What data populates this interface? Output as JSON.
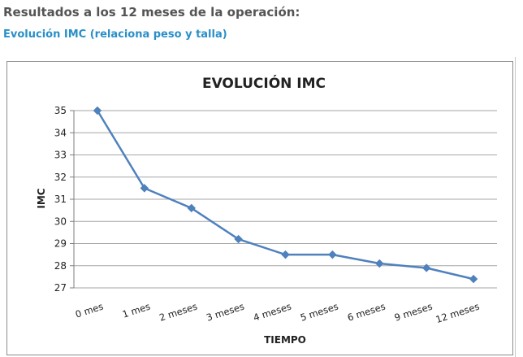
{
  "heading": "Resultados a los 12 meses de la operación:",
  "subheading": "Evolución IMC (relaciona peso y talla)",
  "colors": {
    "heading": "#555555",
    "subheading": "#2a8fc8",
    "series": "#4f81bd",
    "grid": "#a6a6a6"
  },
  "chart_data": {
    "type": "line",
    "title": "EVOLUCIÓN IMC",
    "xlabel": "TIEMPO",
    "ylabel": "IMC",
    "categories": [
      "0 mes",
      "1 mes",
      "2 meses",
      "3 meses",
      "4 meses",
      "5 meses",
      "6 meses",
      "9 meses",
      "12 meses"
    ],
    "series": [
      {
        "values": [
          35,
          31.5,
          30.6,
          29.2,
          28.5,
          28.5,
          28.1,
          27.9,
          27.4
        ]
      }
    ],
    "ylim": [
      27,
      35
    ],
    "yticks": [
      "27",
      "28",
      "29",
      "30",
      "31",
      "32",
      "33",
      "34",
      "35"
    ],
    "grid": true,
    "legend": "none",
    "marker": "diamond"
  }
}
